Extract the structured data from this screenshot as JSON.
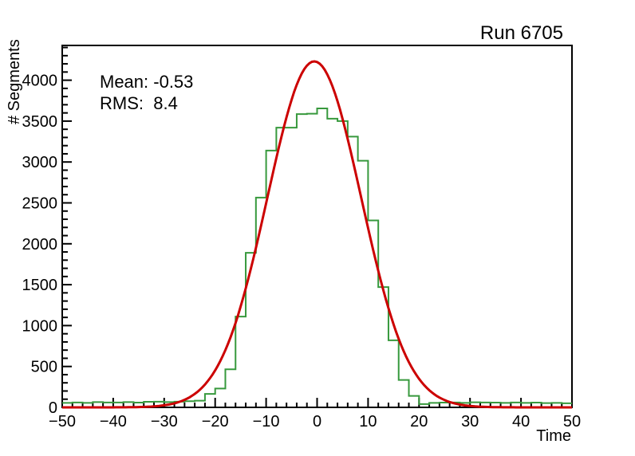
{
  "title": "Run 6705",
  "stats": {
    "mean_label": "Mean: -0.53",
    "rms_label": "RMS:  8.4"
  },
  "axes": {
    "x_title": "Time",
    "y_title": "# Segments",
    "x_tick_labels": [
      "−50",
      "−40",
      "−30",
      "−20",
      "−10",
      "0",
      "10",
      "20",
      "30",
      "40",
      "50"
    ],
    "y_tick_labels": [
      "0",
      "500",
      "1000",
      "1500",
      "2000",
      "2500",
      "3000",
      "3500",
      "4000"
    ]
  },
  "colors": {
    "histogram": "#37993d",
    "fit_curve": "#cc0000",
    "frame": "#000000",
    "text": "#000000"
  },
  "chart_data": {
    "type": "histogram+fit",
    "title": "Run 6705",
    "xlabel": "Time",
    "ylabel": "# Segments",
    "xlim": [
      -50,
      50
    ],
    "ylim": [
      0,
      4425
    ],
    "x_major_ticks": [
      -50,
      -40,
      -30,
      -20,
      -10,
      0,
      10,
      20,
      30,
      40,
      50
    ],
    "x_minor_step": 2,
    "y_major_ticks": [
      0,
      500,
      1000,
      1500,
      2000,
      2500,
      3000,
      3500,
      4000
    ],
    "y_minor_step": 100,
    "grid": false,
    "legend": "none",
    "histogram": {
      "bin_start": -50,
      "bin_width": 2,
      "counts": [
        55,
        60,
        55,
        65,
        60,
        60,
        65,
        58,
        68,
        70,
        65,
        70,
        75,
        82,
        165,
        230,
        465,
        1110,
        1890,
        2565,
        3140,
        3420,
        3420,
        3585,
        3590,
        3655,
        3530,
        3500,
        3310,
        3015,
        2285,
        1470,
        820,
        335,
        140,
        40,
        55,
        58,
        60,
        55,
        62,
        60,
        58,
        55,
        60,
        55,
        58,
        52,
        55,
        50
      ]
    },
    "fit": {
      "shape": "gaussian",
      "amplitude": 4230,
      "mean": -0.55,
      "sigma": 9.2
    },
    "stats": {
      "mean": -0.53,
      "rms": 8.4
    }
  }
}
